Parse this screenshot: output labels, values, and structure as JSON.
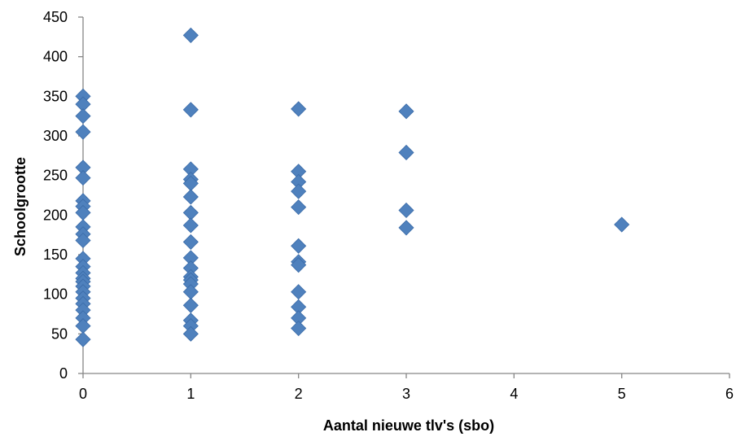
{
  "chart_data": {
    "type": "scatter",
    "title": "",
    "xlabel": "Aantal nieuwe tlv's (sbo)",
    "ylabel": "Schoolgrootte",
    "xlim": [
      0,
      6
    ],
    "ylim": [
      0,
      450
    ],
    "x_ticks": [
      "0",
      "1",
      "2",
      "3",
      "4",
      "5",
      "6"
    ],
    "y_ticks": [
      "0",
      "50",
      "100",
      "150",
      "200",
      "250",
      "300",
      "350",
      "400",
      "450"
    ],
    "grid": false,
    "legend": "none",
    "marker": "diamond",
    "marker_color": "#4F81BD",
    "marker_edge_color": "#3A6BA8",
    "series": [
      {
        "points": [
          [
            0,
            350
          ],
          [
            0,
            340
          ],
          [
            0,
            325
          ],
          [
            0,
            305
          ],
          [
            0,
            260
          ],
          [
            0,
            247
          ],
          [
            0,
            218
          ],
          [
            0,
            211
          ],
          [
            0,
            203
          ],
          [
            0,
            185
          ],
          [
            0,
            176
          ],
          [
            0,
            168
          ],
          [
            0,
            145
          ],
          [
            0,
            135
          ],
          [
            0,
            127
          ],
          [
            0,
            120
          ],
          [
            0,
            116
          ],
          [
            0,
            110
          ],
          [
            0,
            103
          ],
          [
            0,
            95
          ],
          [
            0,
            88
          ],
          [
            0,
            80
          ],
          [
            0,
            70
          ],
          [
            0,
            60
          ],
          [
            0,
            43
          ],
          [
            1,
            427
          ],
          [
            1,
            333
          ],
          [
            1,
            258
          ],
          [
            1,
            245
          ],
          [
            1,
            240
          ],
          [
            1,
            223
          ],
          [
            1,
            203
          ],
          [
            1,
            187
          ],
          [
            1,
            166
          ],
          [
            1,
            146
          ],
          [
            1,
            133
          ],
          [
            1,
            122
          ],
          [
            1,
            118
          ],
          [
            1,
            113
          ],
          [
            1,
            103
          ],
          [
            1,
            86
          ],
          [
            1,
            67
          ],
          [
            1,
            60
          ],
          [
            1,
            50
          ],
          [
            2,
            334
          ],
          [
            2,
            255
          ],
          [
            2,
            242
          ],
          [
            2,
            230
          ],
          [
            2,
            210
          ],
          [
            2,
            161
          ],
          [
            2,
            141
          ],
          [
            2,
            137
          ],
          [
            2,
            103
          ],
          [
            2,
            84
          ],
          [
            2,
            70
          ],
          [
            2,
            57
          ],
          [
            3,
            331
          ],
          [
            3,
            279
          ],
          [
            3,
            206
          ],
          [
            3,
            184
          ],
          [
            5,
            188
          ]
        ]
      }
    ]
  }
}
